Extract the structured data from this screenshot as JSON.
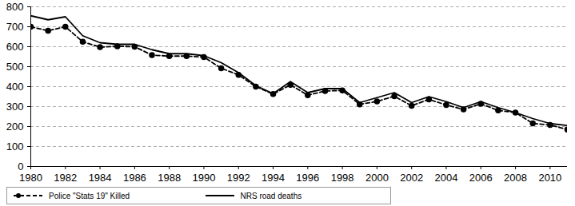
{
  "chart_data": {
    "type": "line",
    "x": [
      1980,
      1981,
      1982,
      1983,
      1984,
      1985,
      1986,
      1987,
      1988,
      1989,
      1990,
      1991,
      1992,
      1993,
      1994,
      1995,
      1996,
      1997,
      1998,
      1999,
      2000,
      2001,
      2002,
      2003,
      2004,
      2005,
      2006,
      2007,
      2008,
      2009,
      2010,
      2011
    ],
    "series": [
      {
        "name": "Police \"Stats 19\" Killed",
        "color": "#000000",
        "line_style": "dashed",
        "marker": "circle",
        "values": [
          700,
          680,
          700,
          625,
          598,
          602,
          600,
          558,
          553,
          553,
          548,
          492,
          459,
          400,
          363,
          409,
          357,
          378,
          381,
          311,
          326,
          352,
          304,
          336,
          308,
          286,
          314,
          281,
          270,
          216,
          208,
          185
        ]
      },
      {
        "name": "NRS road deaths",
        "color": "#000000",
        "line_style": "solid",
        "marker": "none",
        "values": [
          755,
          735,
          750,
          655,
          620,
          612,
          612,
          585,
          565,
          565,
          555,
          520,
          470,
          405,
          365,
          425,
          370,
          390,
          390,
          320,
          345,
          370,
          320,
          350,
          325,
          295,
          325,
          295,
          270,
          240,
          215,
          205
        ]
      }
    ],
    "xlim": [
      1980,
      2011
    ],
    "xticks": [
      1980,
      1982,
      1984,
      1986,
      1988,
      1990,
      1992,
      1994,
      1996,
      1998,
      2000,
      2002,
      2004,
      2006,
      2008,
      2010
    ],
    "ylim": [
      0,
      800
    ],
    "yticks": [
      0,
      100,
      200,
      300,
      400,
      500,
      600,
      700,
      800
    ],
    "grid": true,
    "legend": "bottom"
  }
}
